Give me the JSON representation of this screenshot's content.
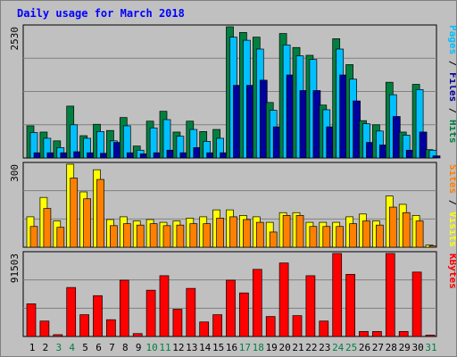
{
  "title": "Daily usage for March 2018",
  "chart_data": [
    {
      "type": "bar",
      "name": "hits-files-pages",
      "max_label": "2530",
      "ylim": [
        0,
        2530
      ],
      "categories": [
        "1",
        "2",
        "3",
        "4",
        "5",
        "6",
        "7",
        "8",
        "9",
        "10",
        "11",
        "12",
        "13",
        "14",
        "15",
        "16",
        "17",
        "18",
        "19",
        "20",
        "21",
        "22",
        "23",
        "24",
        "25",
        "26",
        "27",
        "28",
        "29",
        "30",
        "31"
      ],
      "series": [
        {
          "name": "Hits",
          "color": "#008040",
          "values": [
            620,
            500,
            330,
            1000,
            430,
            650,
            530,
            780,
            230,
            710,
            900,
            500,
            710,
            510,
            550,
            2530,
            2420,
            2330,
            1070,
            2400,
            2130,
            1980,
            1020,
            2300,
            1800,
            720,
            640,
            1460,
            500,
            1420,
            160
          ]
        },
        {
          "name": "Files",
          "color": "#00c0ff",
          "values": [
            490,
            380,
            200,
            640,
            380,
            510,
            330,
            620,
            150,
            580,
            740,
            420,
            550,
            320,
            380,
            2330,
            2270,
            2100,
            920,
            2180,
            1970,
            1900,
            930,
            2100,
            1520,
            660,
            520,
            1220,
            440,
            1320,
            150
          ]
        },
        {
          "name": "Pages",
          "color": "#0000a0",
          "values": [
            100,
            100,
            100,
            120,
            100,
            90,
            300,
            100,
            80,
            100,
            150,
            100,
            200,
            100,
            100,
            1400,
            1400,
            1500,
            600,
            1600,
            1300,
            1300,
            600,
            1600,
            1100,
            300,
            250,
            800,
            150,
            500,
            40
          ]
        }
      ],
      "axis_labels": [
        {
          "text": "Pages",
          "color": "#00c0ff"
        },
        {
          "text": " / ",
          "color": "#000000"
        },
        {
          "text": "Files",
          "color": "#0000a0"
        },
        {
          "text": " / ",
          "color": "#000000"
        },
        {
          "text": "Hits",
          "color": "#008040"
        }
      ]
    },
    {
      "type": "bar",
      "name": "visits-sites",
      "max_label": "300",
      "ylim": [
        0,
        300
      ],
      "categories": [
        "1",
        "2",
        "3",
        "4",
        "5",
        "6",
        "7",
        "8",
        "9",
        "10",
        "11",
        "12",
        "13",
        "14",
        "15",
        "16",
        "17",
        "18",
        "19",
        "20",
        "21",
        "22",
        "23",
        "24",
        "25",
        "26",
        "27",
        "28",
        "29",
        "30",
        "31"
      ],
      "series": [
        {
          "name": "Visits",
          "color": "#ffff00",
          "values": [
            110,
            180,
            95,
            300,
            200,
            280,
            100,
            110,
            95,
            100,
            90,
            95,
            105,
            110,
            135,
            135,
            115,
            110,
            90,
            125,
            125,
            90,
            90,
            90,
            110,
            120,
            95,
            185,
            155,
            115,
            8
          ]
        },
        {
          "name": "Sites",
          "color": "#ff8000",
          "values": [
            75,
            140,
            72,
            250,
            175,
            245,
            78,
            85,
            80,
            85,
            78,
            80,
            85,
            85,
            105,
            110,
            100,
            90,
            55,
            115,
            115,
            75,
            75,
            75,
            85,
            95,
            80,
            145,
            125,
            95,
            5
          ]
        }
      ],
      "axis_labels": [
        {
          "text": "Sites",
          "color": "#ff8000"
        },
        {
          "text": " / ",
          "color": "#000000"
        },
        {
          "text": "Visits",
          "color": "#ffff00"
        }
      ]
    },
    {
      "type": "bar",
      "name": "kbytes",
      "max_label": "91503",
      "ylim": [
        0,
        91503
      ],
      "categories": [
        "1",
        "2",
        "3",
        "4",
        "5",
        "6",
        "7",
        "8",
        "9",
        "10",
        "11",
        "12",
        "13",
        "14",
        "15",
        "16",
        "17",
        "18",
        "19",
        "20",
        "21",
        "22",
        "23",
        "24",
        "25",
        "26",
        "27",
        "28",
        "29",
        "30",
        "31"
      ],
      "series": [
        {
          "name": "KBytes",
          "color": "#ff0000",
          "values": [
            36000,
            17000,
            2000,
            54000,
            24000,
            45000,
            18500,
            62000,
            3200,
            51000,
            67000,
            30000,
            53000,
            16000,
            24000,
            62000,
            48000,
            74000,
            22000,
            81000,
            23000,
            67000,
            17000,
            91503,
            68500,
            5500,
            5500,
            91503,
            5500,
            71000,
            1500
          ]
        }
      ],
      "axis_labels": [
        {
          "text": "KBytes",
          "color": "#ff0000"
        }
      ]
    }
  ],
  "x_labels": [
    {
      "text": "1",
      "color": "#000000"
    },
    {
      "text": "2",
      "color": "#000000"
    },
    {
      "text": "3",
      "color": "#008040"
    },
    {
      "text": "4",
      "color": "#008040"
    },
    {
      "text": "5",
      "color": "#000000"
    },
    {
      "text": "6",
      "color": "#000000"
    },
    {
      "text": "7",
      "color": "#000000"
    },
    {
      "text": "8",
      "color": "#000000"
    },
    {
      "text": "9",
      "color": "#000000"
    },
    {
      "text": "10",
      "color": "#008040"
    },
    {
      "text": "11",
      "color": "#008040"
    },
    {
      "text": "12",
      "color": "#000000"
    },
    {
      "text": "13",
      "color": "#000000"
    },
    {
      "text": "14",
      "color": "#000000"
    },
    {
      "text": "15",
      "color": "#000000"
    },
    {
      "text": "16",
      "color": "#000000"
    },
    {
      "text": "17",
      "color": "#008040"
    },
    {
      "text": "18",
      "color": "#008040"
    },
    {
      "text": "19",
      "color": "#000000"
    },
    {
      "text": "20",
      "color": "#000000"
    },
    {
      "text": "21",
      "color": "#000000"
    },
    {
      "text": "22",
      "color": "#000000"
    },
    {
      "text": "23",
      "color": "#000000"
    },
    {
      "text": "24",
      "color": "#008040"
    },
    {
      "text": "25",
      "color": "#008040"
    },
    {
      "text": "26",
      "color": "#000000"
    },
    {
      "text": "27",
      "color": "#000000"
    },
    {
      "text": "28",
      "color": "#000000"
    },
    {
      "text": "29",
      "color": "#000000"
    },
    {
      "text": "30",
      "color": "#000000"
    },
    {
      "text": "31",
      "color": "#008040"
    }
  ],
  "colors": {
    "background": "#c0c0c0",
    "plot_background": "#c0c0c0",
    "grid": "#808080",
    "title": "#0000ff"
  }
}
